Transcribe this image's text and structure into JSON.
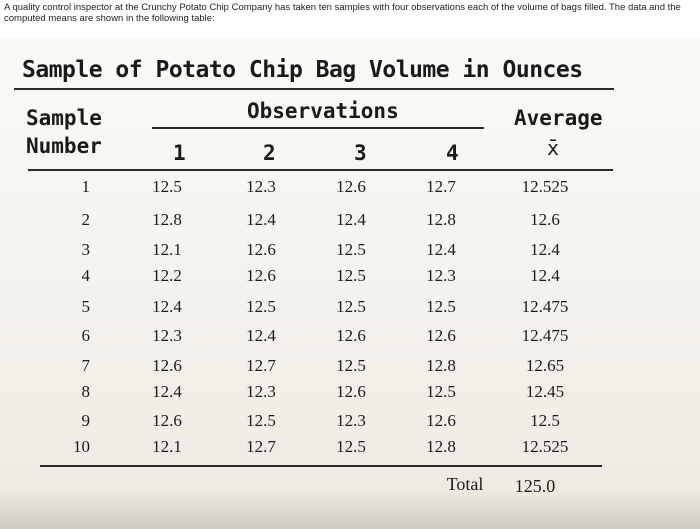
{
  "intro_text": "A quality control inspector at the Crunchy Potato Chip Company has taken ten samples with four observations each of the volume of bags filled. The data and the computed means are shown in the following table:",
  "table": {
    "title": "Sample of Potato Chip Bag Volume in Ounces",
    "headers": {
      "sample_line1": "Sample",
      "sample_line2": "Number",
      "observations": "Observations",
      "obs_numbers": [
        "1",
        "2",
        "3",
        "4"
      ],
      "average": "Average",
      "xbar": "x̄"
    },
    "rows": [
      {
        "sample": "1",
        "obs": [
          "12.5",
          "12.3",
          "12.6",
          "12.7"
        ],
        "avg": "12.525"
      },
      {
        "sample": "2",
        "obs": [
          "12.8",
          "12.4",
          "12.4",
          "12.8"
        ],
        "avg": "12.6"
      },
      {
        "sample": "3",
        "obs": [
          "12.1",
          "12.6",
          "12.5",
          "12.4"
        ],
        "avg": "12.4"
      },
      {
        "sample": "4",
        "obs": [
          "12.2",
          "12.6",
          "12.5",
          "12.3"
        ],
        "avg": "12.4"
      },
      {
        "sample": "5",
        "obs": [
          "12.4",
          "12.5",
          "12.5",
          "12.5"
        ],
        "avg": "12.475"
      },
      {
        "sample": "6",
        "obs": [
          "12.3",
          "12.4",
          "12.6",
          "12.6"
        ],
        "avg": "12.475"
      },
      {
        "sample": "7",
        "obs": [
          "12.6",
          "12.7",
          "12.5",
          "12.8"
        ],
        "avg": "12.65"
      },
      {
        "sample": "8",
        "obs": [
          "12.4",
          "12.3",
          "12.6",
          "12.5"
        ],
        "avg": "12.45"
      },
      {
        "sample": "9",
        "obs": [
          "12.6",
          "12.5",
          "12.3",
          "12.6"
        ],
        "avg": "12.5"
      },
      {
        "sample": "10",
        "obs": [
          "12.1",
          "12.7",
          "12.5",
          "12.8"
        ],
        "avg": "12.525"
      }
    ],
    "total_label": "Total",
    "total_value": "125.0"
  }
}
